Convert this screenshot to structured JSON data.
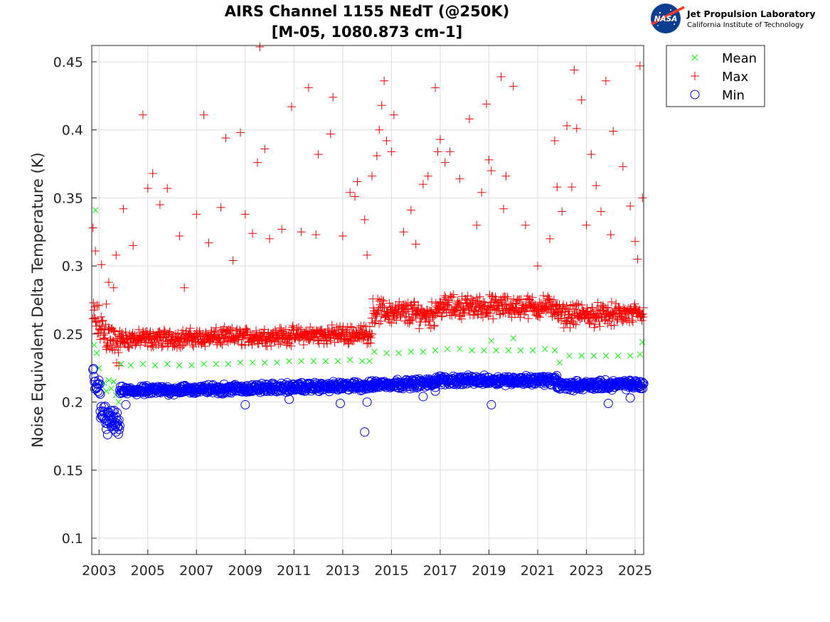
{
  "logo": {
    "lab": "Jet Propulsion Laboratory",
    "institute": "California Institute of Technology",
    "agency": "NASA"
  },
  "chart_data": {
    "type": "scatter",
    "title": "AIRS Channel 1155 NEdT (@250K)",
    "subtitle": "[M-05, 1080.873 cm-1]",
    "xlabel": "",
    "ylabel": "Noise Equivalent Delta Temperature (K)",
    "xlim": [
      2002.7,
      2025.35
    ],
    "ylim": [
      0.088,
      0.462
    ],
    "xticks": [
      2003,
      2005,
      2007,
      2009,
      2011,
      2013,
      2015,
      2017,
      2019,
      2021,
      2023,
      2025
    ],
    "xtick_labels": [
      "2003",
      "2005",
      "2007",
      "2009",
      "2011",
      "2013",
      "2015",
      "2017",
      "2019",
      "2021",
      "2023",
      "2025"
    ],
    "yticks": [
      0.1,
      0.15,
      0.2,
      0.25,
      0.3,
      0.35,
      0.4,
      0.45
    ],
    "ytick_labels": [
      "0.1",
      "0.15",
      "0.2",
      "0.25",
      "0.3",
      "0.35",
      "0.4",
      "0.45"
    ],
    "grid": true,
    "legend_position": "top-right outside",
    "series": [
      {
        "name": "Mean",
        "marker": "x",
        "color": "#00ff00",
        "points": [
          [
            2002.8,
            0.242
          ],
          [
            2002.85,
            0.341
          ],
          [
            2002.9,
            0.236
          ],
          [
            2003.0,
            0.225
          ],
          [
            2003.1,
            0.212
          ],
          [
            2003.2,
            0.214
          ],
          [
            2003.3,
            0.208
          ],
          [
            2003.4,
            0.216
          ],
          [
            2003.5,
            0.21
          ],
          [
            2003.6,
            0.215
          ],
          [
            2003.7,
            0.205
          ],
          [
            2003.8,
            0.2
          ],
          [
            2003.9,
            0.228
          ],
          [
            2004.3,
            0.227
          ],
          [
            2004.8,
            0.228
          ],
          [
            2005.3,
            0.227
          ],
          [
            2005.8,
            0.228
          ],
          [
            2006.3,
            0.227
          ],
          [
            2006.8,
            0.227
          ],
          [
            2007.3,
            0.228
          ],
          [
            2007.8,
            0.228
          ],
          [
            2008.3,
            0.228
          ],
          [
            2008.8,
            0.229
          ],
          [
            2009.3,
            0.229
          ],
          [
            2009.8,
            0.229
          ],
          [
            2010.3,
            0.229
          ],
          [
            2010.8,
            0.23
          ],
          [
            2011.3,
            0.23
          ],
          [
            2011.8,
            0.23
          ],
          [
            2012.3,
            0.23
          ],
          [
            2012.8,
            0.23
          ],
          [
            2013.3,
            0.231
          ],
          [
            2013.8,
            0.23
          ],
          [
            2014.1,
            0.23
          ],
          [
            2014.3,
            0.237
          ],
          [
            2014.8,
            0.236
          ],
          [
            2015.3,
            0.236
          ],
          [
            2015.8,
            0.237
          ],
          [
            2016.3,
            0.237
          ],
          [
            2016.8,
            0.238
          ],
          [
            2017.3,
            0.239
          ],
          [
            2017.8,
            0.239
          ],
          [
            2018.3,
            0.238
          ],
          [
            2018.8,
            0.238
          ],
          [
            2019.1,
            0.245
          ],
          [
            2019.3,
            0.238
          ],
          [
            2019.8,
            0.238
          ],
          [
            2020.0,
            0.247
          ],
          [
            2020.3,
            0.238
          ],
          [
            2020.8,
            0.238
          ],
          [
            2021.3,
            0.239
          ],
          [
            2021.7,
            0.238
          ],
          [
            2021.9,
            0.229
          ],
          [
            2022.3,
            0.234
          ],
          [
            2022.8,
            0.234
          ],
          [
            2023.3,
            0.234
          ],
          [
            2023.8,
            0.234
          ],
          [
            2024.3,
            0.234
          ],
          [
            2024.8,
            0.234
          ],
          [
            2025.2,
            0.235
          ],
          [
            2025.3,
            0.244
          ]
        ]
      },
      {
        "name": "Max",
        "marker": "+",
        "color": "#ff0000",
        "points": [
          [
            2002.75,
            0.328
          ],
          [
            2002.85,
            0.311
          ],
          [
            2003.1,
            0.301
          ],
          [
            2003.3,
            0.272
          ],
          [
            2003.4,
            0.288
          ],
          [
            2003.6,
            0.284
          ],
          [
            2003.7,
            0.308
          ],
          [
            2004.0,
            0.342
          ],
          [
            2004.4,
            0.315
          ],
          [
            2004.8,
            0.411
          ],
          [
            2005.0,
            0.357
          ],
          [
            2005.2,
            0.368
          ],
          [
            2005.5,
            0.345
          ],
          [
            2005.8,
            0.357
          ],
          [
            2006.3,
            0.322
          ],
          [
            2006.5,
            0.284
          ],
          [
            2007.0,
            0.338
          ],
          [
            2007.3,
            0.411
          ],
          [
            2007.5,
            0.317
          ],
          [
            2008.0,
            0.343
          ],
          [
            2008.2,
            0.394
          ],
          [
            2008.5,
            0.304
          ],
          [
            2008.8,
            0.398
          ],
          [
            2009.0,
            0.338
          ],
          [
            2009.3,
            0.324
          ],
          [
            2009.5,
            0.376
          ],
          [
            2009.6,
            0.461
          ],
          [
            2009.8,
            0.386
          ],
          [
            2010.0,
            0.32
          ],
          [
            2010.5,
            0.327
          ],
          [
            2010.9,
            0.417
          ],
          [
            2011.3,
            0.325
          ],
          [
            2011.6,
            0.431
          ],
          [
            2011.9,
            0.323
          ],
          [
            2012.0,
            0.382
          ],
          [
            2012.5,
            0.397
          ],
          [
            2012.6,
            0.424
          ],
          [
            2013.0,
            0.322
          ],
          [
            2013.3,
            0.354
          ],
          [
            2013.5,
            0.351
          ],
          [
            2013.6,
            0.362
          ],
          [
            2013.9,
            0.334
          ],
          [
            2014.0,
            0.308
          ],
          [
            2014.2,
            0.366
          ],
          [
            2014.4,
            0.381
          ],
          [
            2014.5,
            0.4
          ],
          [
            2014.6,
            0.418
          ],
          [
            2014.7,
            0.436
          ],
          [
            2014.8,
            0.392
          ],
          [
            2015.0,
            0.384
          ],
          [
            2015.1,
            0.411
          ],
          [
            2015.5,
            0.325
          ],
          [
            2015.8,
            0.341
          ],
          [
            2016.0,
            0.316
          ],
          [
            2016.3,
            0.36
          ],
          [
            2016.5,
            0.366
          ],
          [
            2016.8,
            0.431
          ],
          [
            2016.9,
            0.384
          ],
          [
            2017.0,
            0.393
          ],
          [
            2017.2,
            0.376
          ],
          [
            2017.4,
            0.384
          ],
          [
            2017.8,
            0.364
          ],
          [
            2018.2,
            0.408
          ],
          [
            2018.5,
            0.33
          ],
          [
            2018.7,
            0.354
          ],
          [
            2018.9,
            0.419
          ],
          [
            2019.0,
            0.378
          ],
          [
            2019.1,
            0.37
          ],
          [
            2019.5,
            0.439
          ],
          [
            2019.6,
            0.342
          ],
          [
            2019.7,
            0.366
          ],
          [
            2020.0,
            0.432
          ],
          [
            2020.5,
            0.33
          ],
          [
            2021.0,
            0.3
          ],
          [
            2021.5,
            0.32
          ],
          [
            2021.7,
            0.392
          ],
          [
            2021.8,
            0.358
          ],
          [
            2022.0,
            0.34
          ],
          [
            2022.2,
            0.403
          ],
          [
            2022.4,
            0.358
          ],
          [
            2022.5,
            0.444
          ],
          [
            2022.6,
            0.401
          ],
          [
            2022.8,
            0.422
          ],
          [
            2023.0,
            0.33
          ],
          [
            2023.2,
            0.382
          ],
          [
            2023.4,
            0.359
          ],
          [
            2023.6,
            0.34
          ],
          [
            2023.8,
            0.436
          ],
          [
            2024.0,
            0.323
          ],
          [
            2024.1,
            0.399
          ],
          [
            2024.5,
            0.373
          ],
          [
            2024.8,
            0.344
          ],
          [
            2025.0,
            0.318
          ],
          [
            2025.1,
            0.305
          ],
          [
            2025.2,
            0.447
          ],
          [
            2025.3,
            0.35
          ]
        ],
        "bands": [
          {
            "x": [
              2002.75,
              2003.85
            ],
            "center_start": 0.262,
            "center_end": 0.238,
            "spread": 0.018
          },
          {
            "x": [
              2003.85,
              2014.2
            ],
            "center_start": 0.246,
            "center_end": 0.25,
            "spread": 0.008
          },
          {
            "x": [
              2014.2,
              2016.8
            ],
            "center_start": 0.267,
            "center_end": 0.264,
            "spread": 0.011
          },
          {
            "x": [
              2016.8,
              2021.8
            ],
            "center_start": 0.27,
            "center_end": 0.27,
            "spread": 0.01
          },
          {
            "x": [
              2021.8,
              2025.35
            ],
            "center_start": 0.264,
            "center_end": 0.264,
            "spread": 0.01
          }
        ]
      },
      {
        "name": "Min",
        "marker": "o",
        "color": "#0000ff",
        "points": [
          [
            2003.3,
            0.18
          ],
          [
            2003.35,
            0.176
          ],
          [
            2003.5,
            0.182
          ],
          [
            2003.6,
            0.18
          ],
          [
            2003.7,
            0.178
          ],
          [
            2003.75,
            0.186
          ],
          [
            2004.1,
            0.198
          ],
          [
            2009.0,
            0.198
          ],
          [
            2010.8,
            0.202
          ],
          [
            2012.9,
            0.199
          ],
          [
            2013.9,
            0.178
          ],
          [
            2014.0,
            0.2
          ],
          [
            2014.2,
            0.212
          ],
          [
            2016.3,
            0.204
          ],
          [
            2016.8,
            0.208
          ],
          [
            2019.1,
            0.198
          ],
          [
            2023.9,
            0.199
          ],
          [
            2024.8,
            0.203
          ],
          [
            2025.2,
            0.21
          ]
        ],
        "bands": [
          {
            "x": [
              2002.75,
              2003.05
            ],
            "center_start": 0.222,
            "center_end": 0.205,
            "spread": 0.01
          },
          {
            "x": [
              2003.05,
              2003.85
            ],
            "center_start": 0.192,
            "center_end": 0.183,
            "spread": 0.009
          },
          {
            "x": [
              2003.85,
              2014.2
            ],
            "center_start": 0.208,
            "center_end": 0.212,
            "spread": 0.004
          },
          {
            "x": [
              2014.2,
              2016.8
            ],
            "center_start": 0.213,
            "center_end": 0.214,
            "spread": 0.004
          },
          {
            "x": [
              2016.8,
              2021.8
            ],
            "center_start": 0.216,
            "center_end": 0.216,
            "spread": 0.004
          },
          {
            "x": [
              2021.8,
              2025.35
            ],
            "center_start": 0.212,
            "center_end": 0.213,
            "spread": 0.004
          }
        ]
      }
    ]
  }
}
